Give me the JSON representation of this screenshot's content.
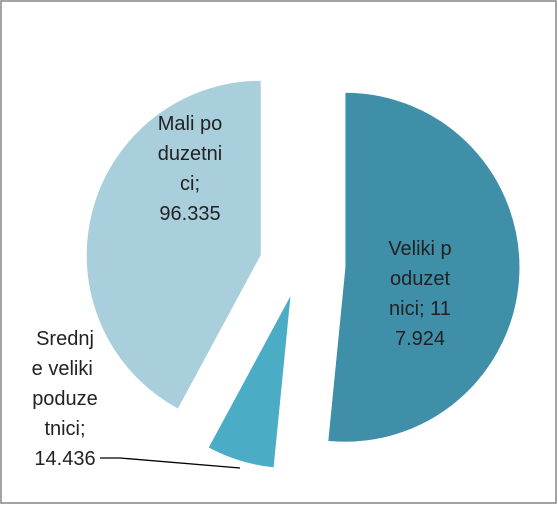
{
  "chart_data": {
    "type": "pie",
    "values": [
      117.924,
      14.436,
      96.335
    ],
    "value_labels": [
      "Veliki poduzetnici; 117.924",
      "Srednje veliki poduzetnici; 14.436",
      "Mali poduzetnici; 96.335"
    ],
    "colors": [
      "#3f8fa8",
      "#4bacc6",
      "#a9cfdc"
    ]
  }
}
